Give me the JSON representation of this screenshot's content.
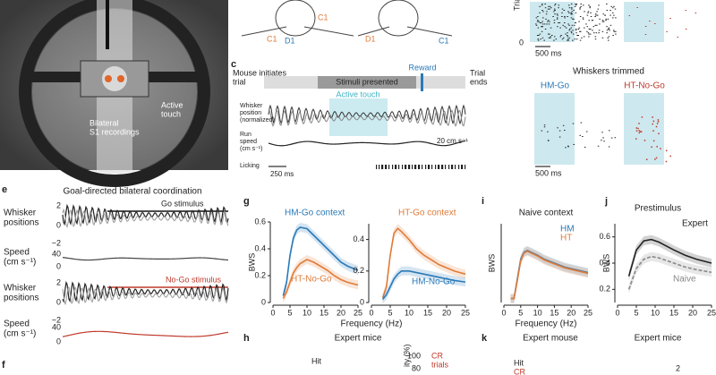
{
  "panel_labels": {
    "c": "c",
    "e": "e",
    "g": "g",
    "h": "h",
    "i": "i",
    "j": "j",
    "k": "k",
    "f": "f"
  },
  "panel_a": {
    "active_touch": [
      "Active",
      "touch"
    ],
    "recording": [
      "Bilateral",
      "S1 recordings"
    ]
  },
  "panel_b": {
    "whiskers": [
      "C1",
      "D1",
      "D1",
      "C1"
    ]
  },
  "panel_c": {
    "initiates": [
      "Mouse initiates",
      "trial"
    ],
    "stimuli": "Stimuli presented",
    "reward": "Reward",
    "ends": [
      "Trial",
      "ends"
    ],
    "active_touch": "Active touch",
    "whisker_label": [
      "Whisker",
      "position",
      "(normalized)"
    ],
    "run_label": [
      "Run",
      "speed",
      "(cm s⁻¹)"
    ],
    "licking": "Licking",
    "speed_scale": "20 cm s⁻¹",
    "time_scale": "250 ms"
  },
  "raster": {
    "trial": "Trial",
    "zero": "0",
    "time_scale": "500 ms",
    "trimmed": "Whiskers trimmed",
    "go": "HM-Go",
    "nogo": "HT-No-Go",
    "time_scale2": "500 ms"
  },
  "panel_e": {
    "title": "Goal-directed bilateral coordination",
    "whisker_label": [
      "Whisker",
      "positions"
    ],
    "speed_label": [
      "Speed",
      "(cm s⁻¹)"
    ],
    "go": "Go stimulus",
    "nogo": "No-Go stimulus",
    "whisker_ticks": [
      "2",
      "0",
      "−2"
    ],
    "speed_ticks": [
      "40",
      "0"
    ],
    "whisker_ticks2": [
      "2",
      "0",
      "−2"
    ],
    "speed_ticks2": [
      "40",
      "0"
    ]
  },
  "panel_h": {
    "title": "Expert mice",
    "hit": "Hit",
    "cr": [
      "CR",
      "trials"
    ],
    "ticks": [
      "100",
      "80"
    ],
    "ylabel": "ity (%)"
  },
  "panel_k": {
    "title": "Expert mouse",
    "hit": "Hit",
    "cr": "CR"
  },
  "panel_l": {
    "title": "Expert mice",
    "tick": "2"
  },
  "chart_data": [
    {
      "type": "line",
      "xlabel": "Frequency (Hz)",
      "ylabel": "BWS",
      "x": [
        3,
        4,
        5,
        6,
        7,
        8,
        10,
        12,
        14,
        16,
        18,
        20,
        22,
        25
      ],
      "series": [
        {
          "name": "HM-Go context",
          "color": "#2a7ab8",
          "values": [
            0.05,
            0.15,
            0.35,
            0.48,
            0.54,
            0.56,
            0.55,
            0.5,
            0.45,
            0.4,
            0.35,
            0.3,
            0.27,
            0.24
          ]
        },
        {
          "name": "HT-No-Go",
          "color": "#e07b39",
          "values": [
            0.03,
            0.08,
            0.15,
            0.22,
            0.26,
            0.29,
            0.32,
            0.3,
            0.27,
            0.24,
            0.2,
            0.17,
            0.15,
            0.13
          ]
        }
      ],
      "xlim": [
        0,
        25
      ],
      "xticks": [
        0,
        5,
        10,
        15,
        20,
        25
      ],
      "ylim": [
        0,
        0.6
      ],
      "yticks": [
        0,
        0.2,
        0.4,
        0.6
      ]
    },
    {
      "type": "line",
      "x": [
        3,
        4,
        5,
        6,
        7,
        8,
        10,
        12,
        14,
        16,
        18,
        20,
        22,
        25
      ],
      "series": [
        {
          "name": "HT-Go context",
          "color": "#e07b39",
          "values": [
            0.03,
            0.1,
            0.3,
            0.44,
            0.47,
            0.45,
            0.4,
            0.34,
            0.3,
            0.27,
            0.24,
            0.22,
            0.2,
            0.18
          ]
        },
        {
          "name": "HM-No-Go",
          "color": "#2a7ab8",
          "values": [
            0.02,
            0.05,
            0.1,
            0.15,
            0.18,
            0.2,
            0.2,
            0.19,
            0.18,
            0.17,
            0.16,
            0.15,
            0.14,
            0.13
          ]
        }
      ],
      "xlim": [
        0,
        25
      ],
      "xticks": [
        0,
        5,
        10,
        15,
        20,
        25
      ],
      "ylim": [
        0,
        0.5
      ],
      "yticks": [
        0,
        0.2,
        0.4
      ]
    },
    {
      "type": "line",
      "title": "Naive context",
      "xlabel": "Frequency (Hz)",
      "ylabel": "BWS",
      "x": [
        2,
        3,
        4,
        5,
        6,
        7,
        8,
        10,
        12,
        15,
        18,
        21,
        25
      ],
      "series": [
        {
          "name": "HM",
          "color": "#2a7ab8",
          "values": [
            0.05,
            0.05,
            0.3,
            0.55,
            0.64,
            0.66,
            0.64,
            0.6,
            0.55,
            0.5,
            0.45,
            0.42,
            0.38
          ]
        },
        {
          "name": "HT",
          "color": "#e07b39",
          "values": [
            0.05,
            0.05,
            0.28,
            0.53,
            0.63,
            0.65,
            0.63,
            0.59,
            0.54,
            0.49,
            0.44,
            0.41,
            0.37
          ]
        }
      ],
      "xlim": [
        0,
        25
      ],
      "xticks": [
        0,
        5,
        10,
        15,
        20,
        25
      ],
      "ylim": [
        0,
        1
      ]
    },
    {
      "type": "line",
      "title": "Prestimulus",
      "ylabel": "BWS",
      "x": [
        3,
        5,
        7,
        9,
        11,
        13,
        15,
        18,
        21,
        25
      ],
      "series": [
        {
          "name": "Expert",
          "color": "#222222",
          "values": [
            0.3,
            0.5,
            0.57,
            0.58,
            0.56,
            0.53,
            0.5,
            0.46,
            0.43,
            0.4
          ]
        },
        {
          "name": "Naive",
          "color": "#888888",
          "dashed": true,
          "values": [
            0.2,
            0.36,
            0.43,
            0.45,
            0.44,
            0.42,
            0.4,
            0.37,
            0.35,
            0.33
          ]
        }
      ],
      "xlim": [
        0,
        25
      ],
      "xticks": [
        0,
        5,
        10,
        15,
        20,
        25
      ],
      "ylim": [
        0.1,
        0.7
      ],
      "yticks": [
        0.2,
        0.4,
        0.6
      ]
    }
  ]
}
